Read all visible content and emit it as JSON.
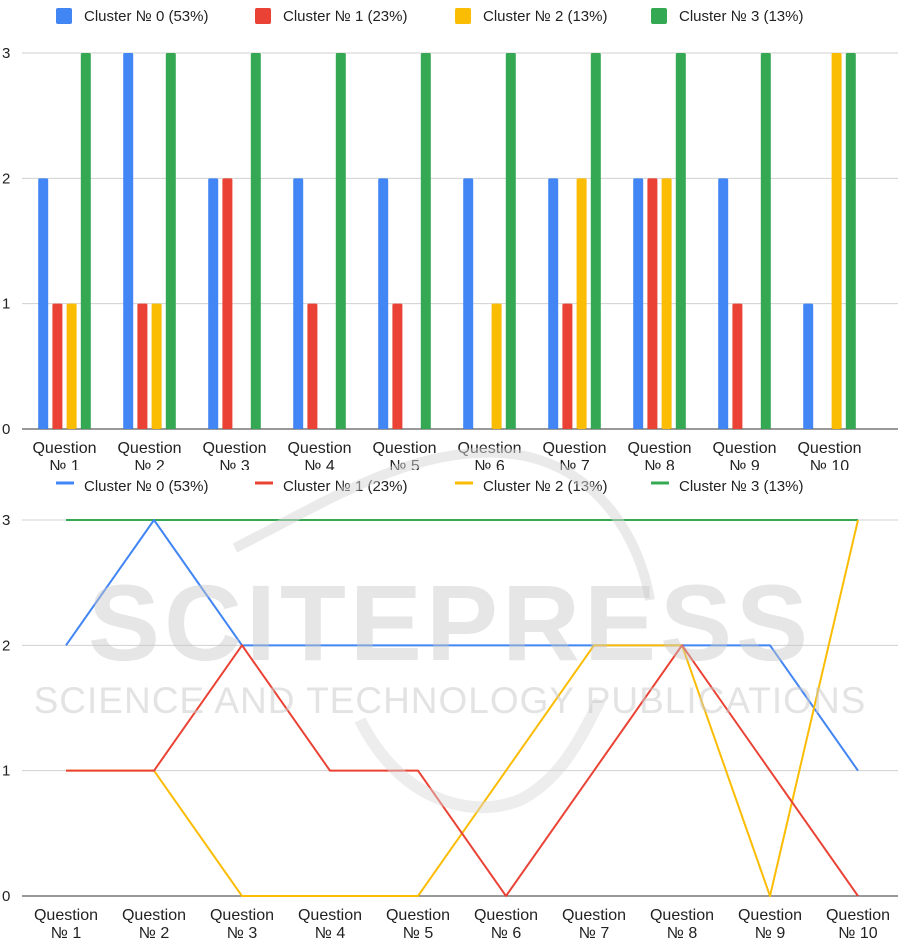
{
  "watermark": {
    "title": "SCITEPRESS",
    "subtitle": "SCIENCE AND TECHNOLOGY PUBLICATIONS"
  },
  "chart_data": [
    {
      "type": "bar",
      "categories": [
        [
          "Question",
          "№ 1"
        ],
        [
          "Question",
          "№ 2"
        ],
        [
          "Question",
          "№ 3"
        ],
        [
          "Question",
          "№ 4"
        ],
        [
          "Question",
          "№ 5"
        ],
        [
          "Question",
          "№ 6"
        ],
        [
          "Question",
          "№ 7"
        ],
        [
          "Question",
          "№ 8"
        ],
        [
          "Question",
          "№ 9"
        ],
        [
          "Question",
          "№ 10"
        ]
      ],
      "series": [
        {
          "name": "Cluster № 0 (53%)",
          "color": "#4285f4",
          "values": [
            2,
            3,
            2,
            2,
            2,
            2,
            2,
            2,
            2,
            1
          ]
        },
        {
          "name": "Cluster № 1 (23%)",
          "color": "#ea4335",
          "values": [
            1,
            1,
            2,
            1,
            1,
            0,
            1,
            2,
            1,
            0
          ]
        },
        {
          "name": "Cluster № 2 (13%)",
          "color": "#fbbc04",
          "values": [
            1,
            1,
            0,
            0,
            0,
            1,
            2,
            2,
            0,
            3
          ]
        },
        {
          "name": "Cluster № 3 (13%)",
          "color": "#34a853",
          "values": [
            3,
            3,
            3,
            3,
            3,
            3,
            3,
            3,
            3,
            3
          ]
        }
      ],
      "ylim": [
        0,
        3
      ],
      "yticks": [
        0,
        1,
        2,
        3
      ],
      "grid": true,
      "legend": "top"
    },
    {
      "type": "line",
      "categories": [
        [
          "Question",
          "№ 1"
        ],
        [
          "Question",
          "№ 2"
        ],
        [
          "Question",
          "№ 3"
        ],
        [
          "Question",
          "№ 4"
        ],
        [
          "Question",
          "№ 5"
        ],
        [
          "Question",
          "№ 6"
        ],
        [
          "Question",
          "№ 7"
        ],
        [
          "Question",
          "№ 8"
        ],
        [
          "Question",
          "№ 9"
        ],
        [
          "Question",
          "№ 10"
        ]
      ],
      "series": [
        {
          "name": "Cluster № 0 (53%)",
          "color": "#4285f4",
          "values": [
            2,
            3,
            2,
            2,
            2,
            2,
            2,
            2,
            2,
            1
          ]
        },
        {
          "name": "Cluster № 1 (23%)",
          "color": "#ea4335",
          "values": [
            1,
            1,
            2,
            1,
            1,
            0,
            1,
            2,
            1,
            0
          ]
        },
        {
          "name": "Cluster № 2 (13%)",
          "color": "#fbbc04",
          "values": [
            1,
            1,
            0,
            0,
            0,
            1,
            2,
            2,
            0,
            3
          ]
        },
        {
          "name": "Cluster № 3 (13%)",
          "color": "#34a853",
          "values": [
            3,
            3,
            3,
            3,
            3,
            3,
            3,
            3,
            3,
            3
          ]
        }
      ],
      "ylim": [
        0,
        3
      ],
      "yticks": [
        0,
        1,
        2,
        3
      ],
      "grid": true,
      "legend": "top"
    }
  ]
}
